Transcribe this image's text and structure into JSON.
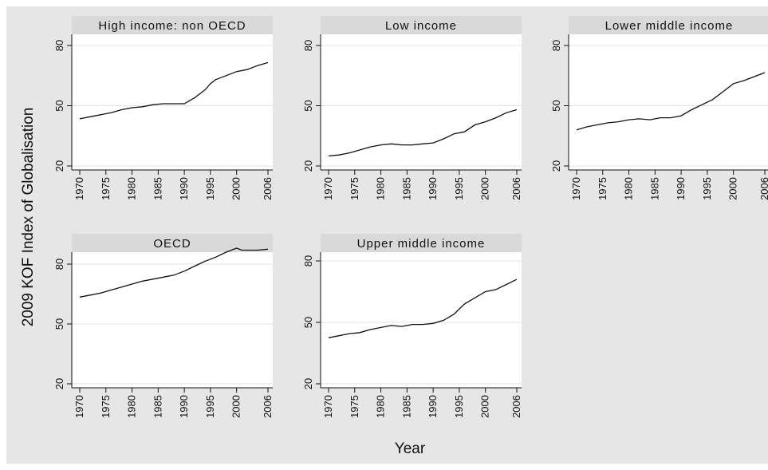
{
  "figure": {
    "ylabel": "2009 KOF Index of Globalisation",
    "xlabel": "Year"
  },
  "chart_data": [
    {
      "type": "line",
      "title": "High income: non OECD",
      "xlabel": "Year",
      "ylabel": "2009 KOF Index of Globalisation",
      "xlim": [
        1970,
        2006
      ],
      "ylim": [
        20,
        80
      ],
      "xticks": [
        1970,
        1975,
        1980,
        1985,
        1990,
        1995,
        2000,
        2006
      ],
      "yticks": [
        20,
        50,
        80
      ],
      "x": [
        1970,
        1972,
        1974,
        1976,
        1978,
        1980,
        1982,
        1984,
        1986,
        1988,
        1990,
        1992,
        1994,
        1995,
        1996,
        1998,
        2000,
        2002,
        2004,
        2006
      ],
      "y": [
        43.5,
        44.5,
        45.5,
        46.5,
        48,
        49,
        49.5,
        50.5,
        51,
        51,
        51,
        54,
        58,
        61,
        63,
        65,
        67,
        68,
        70,
        71.5
      ]
    },
    {
      "type": "line",
      "title": "Low income",
      "xlabel": "Year",
      "ylabel": "2009 KOF Index of Globalisation",
      "xlim": [
        1970,
        2006
      ],
      "ylim": [
        20,
        80
      ],
      "xticks": [
        1970,
        1975,
        1980,
        1985,
        1990,
        1995,
        2000,
        2006
      ],
      "yticks": [
        20,
        50,
        80
      ],
      "x": [
        1970,
        1972,
        1974,
        1976,
        1978,
        1980,
        1982,
        1984,
        1986,
        1988,
        1990,
        1992,
        1994,
        1996,
        1998,
        2000,
        2002,
        2004,
        2006
      ],
      "y": [
        25,
        25.5,
        26.5,
        28,
        29.5,
        30.5,
        31,
        30.5,
        30.5,
        31,
        31.5,
        33.5,
        36,
        37,
        40.5,
        42,
        44,
        46.5,
        48
      ]
    },
    {
      "type": "line",
      "title": "Lower middle income",
      "xlabel": "Year",
      "ylabel": "2009 KOF Index of Globalisation",
      "xlim": [
        1970,
        2006
      ],
      "ylim": [
        20,
        80
      ],
      "xticks": [
        1970,
        1975,
        1980,
        1985,
        1990,
        1995,
        2000,
        2006
      ],
      "yticks": [
        20,
        50,
        80
      ],
      "x": [
        1970,
        1972,
        1974,
        1976,
        1978,
        1980,
        1982,
        1984,
        1986,
        1988,
        1990,
        1992,
        1994,
        1996,
        1998,
        2000,
        2002,
        2004,
        2006
      ],
      "y": [
        38,
        39.5,
        40.5,
        41.5,
        42,
        43,
        43.5,
        43,
        44,
        44,
        45,
        48,
        50.5,
        53,
        57,
        61,
        62.5,
        64.5,
        66.5
      ]
    },
    {
      "type": "line",
      "title": "OECD",
      "xlabel": "Year",
      "ylabel": "2009 KOF Index of Globalisation",
      "xlim": [
        1970,
        2006
      ],
      "ylim": [
        20,
        80
      ],
      "xticks": [
        1970,
        1975,
        1980,
        1985,
        1990,
        1995,
        2000,
        2006
      ],
      "yticks": [
        20,
        50,
        80
      ],
      "x": [
        1970,
        1972,
        1974,
        1976,
        1978,
        1980,
        1982,
        1984,
        1986,
        1988,
        1990,
        1992,
        1994,
        1996,
        1998,
        2000,
        2001,
        2002,
        2004,
        2006
      ],
      "y": [
        63.5,
        64.5,
        65.5,
        67,
        68.5,
        70,
        71.5,
        72.5,
        73.5,
        74.5,
        76.5,
        79,
        81.5,
        83.5,
        86,
        88,
        87,
        87,
        87,
        87.5
      ]
    },
    {
      "type": "line",
      "title": "Upper middle income",
      "xlabel": "Year",
      "ylabel": "2009 KOF Index of Globalisation",
      "xlim": [
        1970,
        2006
      ],
      "ylim": [
        20,
        80
      ],
      "xticks": [
        1970,
        1975,
        1980,
        1985,
        1990,
        1995,
        2000,
        2006
      ],
      "yticks": [
        20,
        50,
        80
      ],
      "x": [
        1970,
        1972,
        1974,
        1976,
        1978,
        1980,
        1982,
        1984,
        1986,
        1988,
        1990,
        1992,
        1994,
        1996,
        1998,
        2000,
        2002,
        2004,
        2006
      ],
      "y": [
        42.5,
        43.5,
        44.5,
        45,
        46.5,
        47.5,
        48.5,
        48,
        49,
        49,
        49.5,
        51,
        54,
        59,
        62,
        65,
        66,
        68.5,
        71
      ]
    }
  ]
}
